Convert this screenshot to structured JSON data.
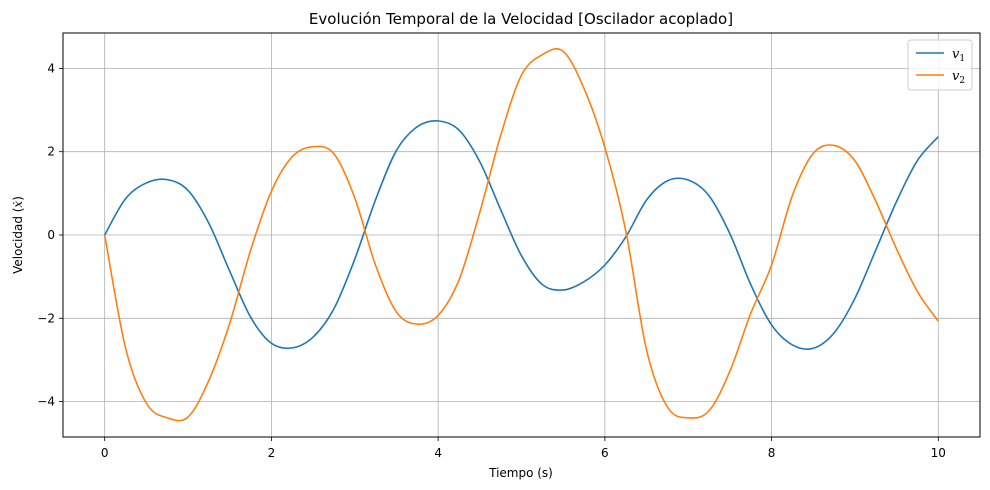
{
  "chart_data": {
    "type": "line",
    "title": "Evolución Temporal de la Velocidad [Oscilador acoplado]",
    "xlabel": "Tiempo (s)",
    "ylabel_prefix": "Velocidad (",
    "ylabel_var": "ẋ",
    "ylabel_suffix": ")",
    "xlim": [
      -0.5,
      10.5
    ],
    "ylim": [
      -4.85,
      4.85
    ],
    "xticks": [
      0,
      2,
      4,
      6,
      8,
      10
    ],
    "yticks": [
      -4,
      -2,
      0,
      2,
      4
    ],
    "grid": true,
    "legend_position": "top-right",
    "x": [
      0,
      0.25,
      0.5,
      0.75,
      1.0,
      1.25,
      1.5,
      1.75,
      2.0,
      2.25,
      2.5,
      2.75,
      3.0,
      3.25,
      3.5,
      3.75,
      4.0,
      4.25,
      4.5,
      4.75,
      5.0,
      5.25,
      5.5,
      5.75,
      6.0,
      6.25,
      6.5,
      6.75,
      7.0,
      7.25,
      7.5,
      7.75,
      8.0,
      8.25,
      8.5,
      8.75,
      9.0,
      9.25,
      9.5,
      9.75,
      10.0
    ],
    "series": [
      {
        "name": "v",
        "name_sub": "1",
        "color": "#1f77b4",
        "values": [
          0.0,
          0.87,
          1.25,
          1.33,
          1.07,
          0.28,
          -0.87,
          -1.97,
          -2.6,
          -2.71,
          -2.45,
          -1.77,
          -0.58,
          0.85,
          2.03,
          2.6,
          2.74,
          2.52,
          1.76,
          0.61,
          -0.5,
          -1.19,
          -1.32,
          -1.12,
          -0.72,
          -0.05,
          0.84,
          1.3,
          1.32,
          0.94,
          0.03,
          -1.19,
          -2.16,
          -2.64,
          -2.72,
          -2.35,
          -1.52,
          -0.36,
          0.81,
          1.79,
          2.36
        ]
      },
      {
        "name": "v",
        "name_sub": "2",
        "color": "#ff7f0e",
        "values": [
          0.0,
          -2.71,
          -4.04,
          -4.39,
          -4.37,
          -3.49,
          -2.12,
          -0.37,
          1.05,
          1.88,
          2.12,
          1.95,
          0.89,
          -0.73,
          -1.85,
          -2.14,
          -1.93,
          -1.08,
          0.55,
          2.39,
          3.84,
          4.33,
          4.41,
          3.52,
          2.1,
          0.11,
          -2.76,
          -4.13,
          -4.39,
          -4.22,
          -3.27,
          -1.88,
          -0.72,
          0.95,
          1.96,
          2.15,
          1.78,
          0.81,
          -0.34,
          -1.36,
          -2.07
        ]
      }
    ]
  }
}
